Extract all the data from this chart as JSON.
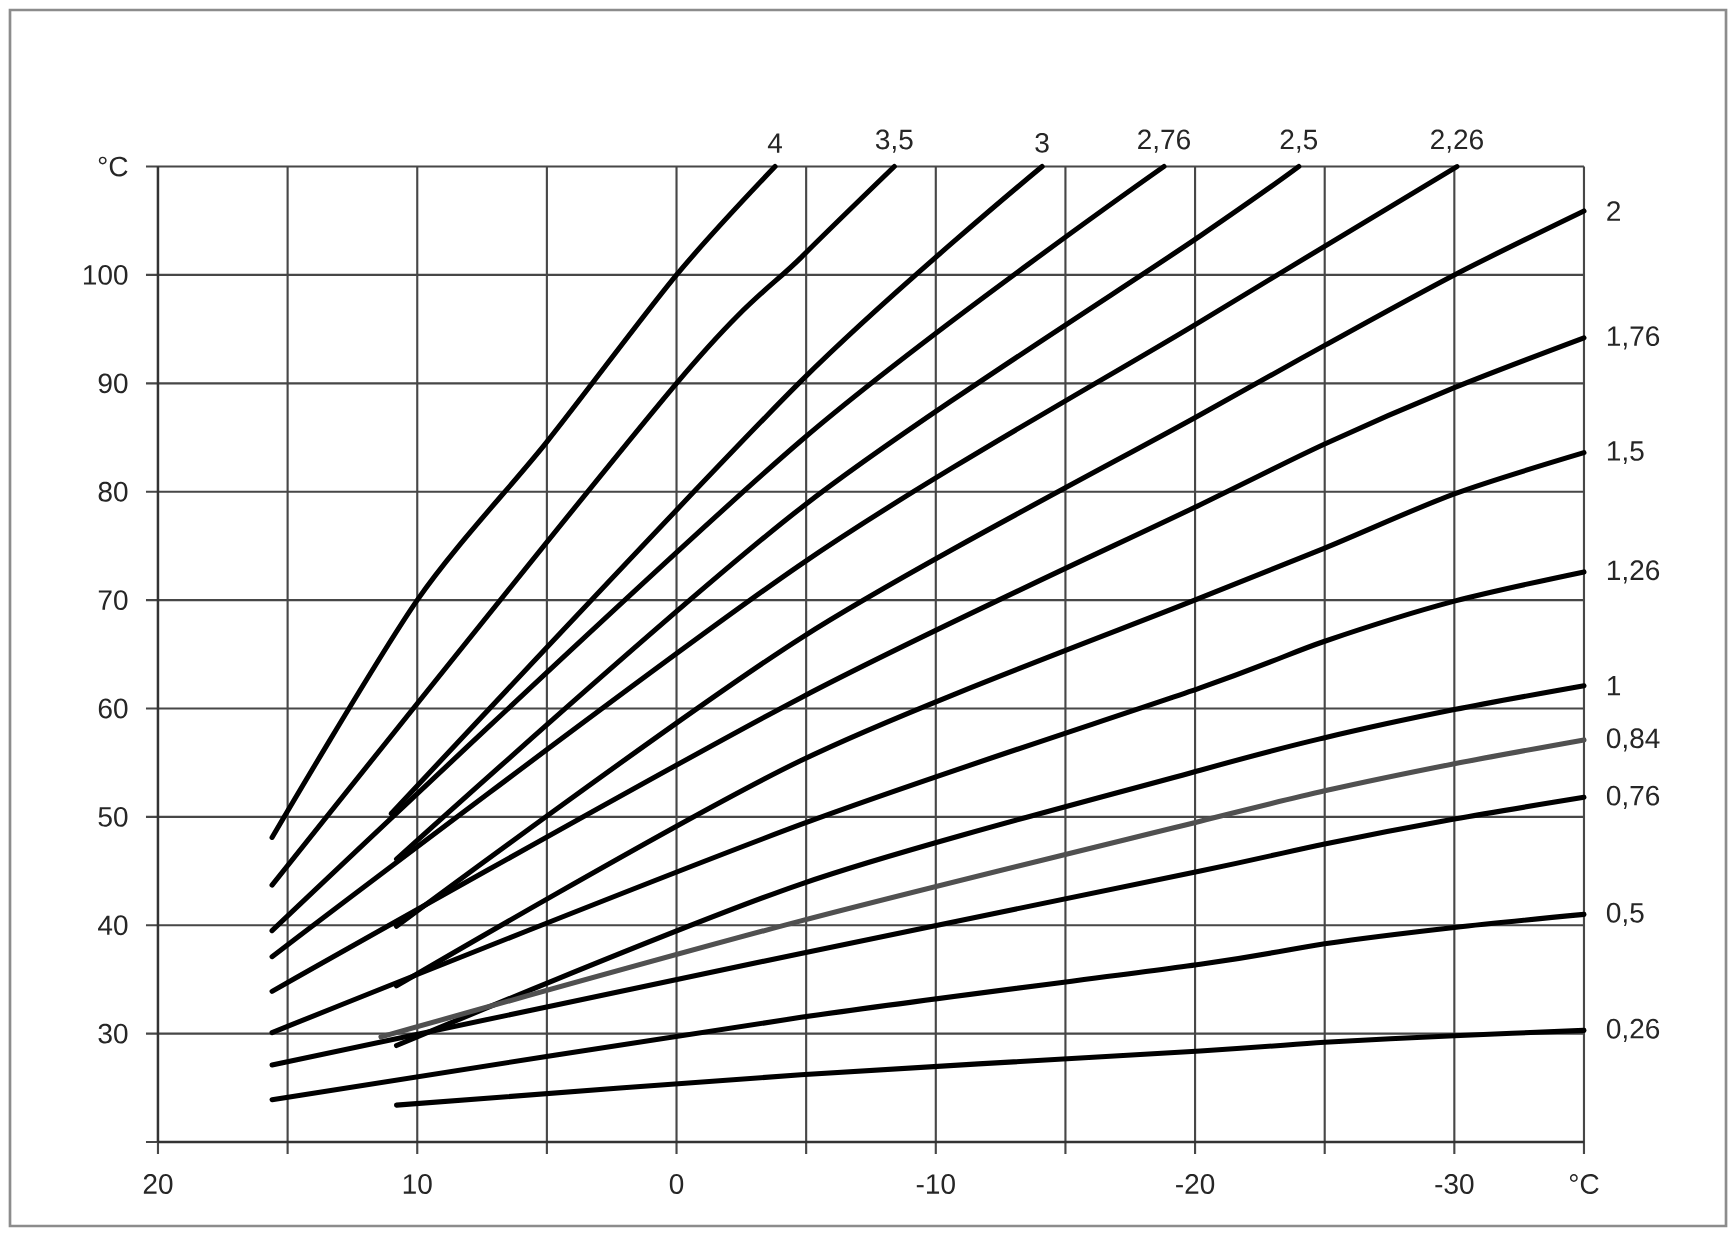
{
  "chart_data": {
    "type": "line",
    "xlim": [
      20,
      -35
    ],
    "ylim": [
      20,
      110
    ],
    "xticks": [
      20,
      {
        "value": 15,
        "label": null
      },
      10,
      {
        "value": 5,
        "label": null
      },
      0,
      {
        "value": -5,
        "label": null
      },
      -10,
      {
        "value": -15,
        "label": null
      },
      -20,
      {
        "value": -25,
        "label": null
      },
      -30,
      {
        "value": -35,
        "label": "°C"
      }
    ],
    "yticks": [
      {
        "value": 20,
        "label": null
      },
      30,
      40,
      50,
      60,
      70,
      80,
      90,
      100,
      {
        "value": 110,
        "label": "°C"
      }
    ],
    "grid": true,
    "line_style": "solid",
    "series": [
      {
        "name": "4",
        "color": "#000000",
        "x": [
          15.6,
          10,
          5,
          0,
          -3.8
        ],
        "values": [
          48.1,
          70,
          84.6,
          100,
          110
        ]
      },
      {
        "name": "3,5",
        "color": "#000000",
        "x": [
          15.6,
          0,
          -4.8,
          -8.4
        ],
        "values": [
          43.7,
          90,
          101.6,
          110
        ]
      },
      {
        "name": "3",
        "color": "#000000",
        "x": [
          11.0,
          -4.8,
          -14.1
        ],
        "values": [
          50.3,
          90.2,
          110
        ]
      },
      {
        "name": "2,76",
        "color": "#000000",
        "x": [
          15.6,
          -4.8,
          -18.8
        ],
        "values": [
          39.5,
          84.7,
          110
        ]
      },
      {
        "name": "2,5",
        "color": "#000000",
        "x": [
          10.8,
          -4.8,
          -20.2,
          -24.0
        ],
        "values": [
          46.1,
          78.5,
          103.6,
          110
        ]
      },
      {
        "name": "2,26",
        "color": "#000000",
        "x": [
          15.6,
          -4.8,
          -20.2,
          -30.1
        ],
        "values": [
          37.1,
          73.3,
          95.7,
          110
        ]
      },
      {
        "name": "2",
        "color": "#000000",
        "x": [
          10.8,
          -4.8,
          -20.2,
          -25,
          -30,
          -35
        ],
        "values": [
          39.9,
          66.5,
          87.1,
          93.5,
          100,
          105.9
        ]
      },
      {
        "name": "1,76",
        "color": "#000000",
        "x": [
          15.6,
          -4.8,
          -20.2,
          -25,
          -30,
          -35
        ],
        "values": [
          33.9,
          61.0,
          78.8,
          84.4,
          89.6,
          94.2
        ]
      },
      {
        "name": "1,5",
        "color": "#000000",
        "x": [
          10.8,
          -4.8,
          -20.2,
          -25,
          -30,
          -35
        ],
        "values": [
          34.4,
          55.2,
          70.2,
          74.8,
          79.8,
          83.6
        ]
      },
      {
        "name": "1,26",
        "color": "#000000",
        "x": [
          15.6,
          -4.8,
          -20.2,
          -25,
          -30,
          -35
        ],
        "values": [
          30.1,
          49.3,
          61.9,
          66.2,
          69.9,
          72.6
        ]
      },
      {
        "name": "1",
        "color": "#000000",
        "x": [
          10.8,
          -4.8,
          -20.2,
          -25,
          -30,
          -35
        ],
        "values": [
          28.9,
          43.8,
          54.3,
          57.3,
          59.9,
          62.1
        ]
      },
      {
        "name": "0,84",
        "color": "#505050",
        "x": [
          11.4,
          -4.8,
          -20.2,
          -25,
          -30,
          -35
        ],
        "values": [
          29.7,
          40.4,
          49.6,
          52.4,
          54.9,
          57.1
        ]
      },
      {
        "name": "0,76",
        "color": "#000000",
        "x": [
          15.6,
          -4.8,
          -20.2,
          -25,
          -30,
          -35
        ],
        "values": [
          27.1,
          37.4,
          45.0,
          47.5,
          49.8,
          51.8
        ]
      },
      {
        "name": "0,5",
        "color": "#000000",
        "x": [
          15.6,
          -4.8,
          -20.2,
          -25,
          -30,
          -35
        ],
        "values": [
          23.9,
          31.5,
          36.4,
          38.3,
          39.8,
          41.0
        ]
      },
      {
        "name": "0,26",
        "color": "#000000",
        "x": [
          10.8,
          -4.8,
          -20.2,
          -25,
          -30,
          -35
        ],
        "values": [
          23.4,
          26.2,
          28.4,
          29.2,
          29.8,
          30.3
        ]
      }
    ]
  }
}
